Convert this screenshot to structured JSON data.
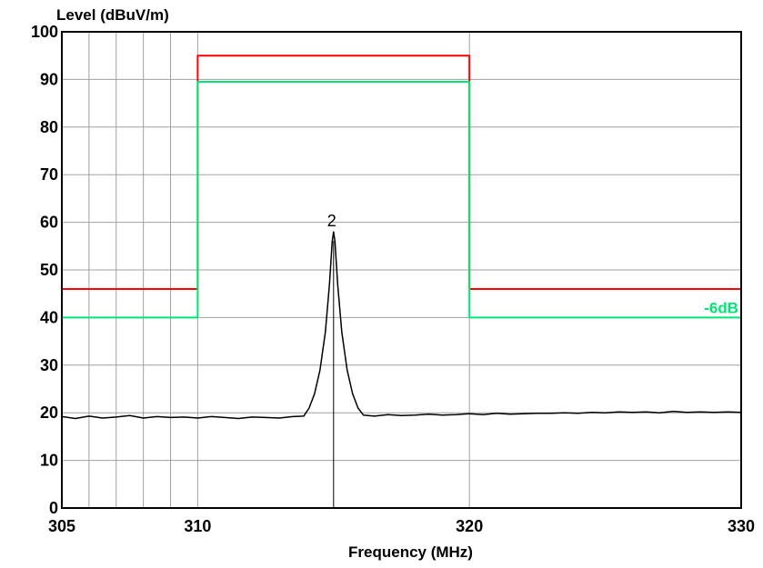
{
  "chart_data": {
    "type": "line",
    "ylabel": "Level (dBuV/m)",
    "xlabel": "Frequency (MHz)",
    "xlim": [
      305,
      330
    ],
    "ylim": [
      0,
      100
    ],
    "x_ticks": [
      305,
      310,
      320,
      330
    ],
    "y_ticks": [
      0,
      10,
      20,
      30,
      40,
      50,
      60,
      70,
      80,
      90,
      100
    ],
    "x_grid_lines": [
      305,
      306,
      307,
      308,
      309,
      310,
      320,
      330
    ],
    "grid": true,
    "series": [
      {
        "color": "#ff0000",
        "points": [
          [
            305,
            46
          ],
          [
            310,
            46
          ],
          [
            310,
            95
          ],
          [
            320,
            95
          ],
          [
            320,
            46
          ],
          [
            330,
            46
          ]
        ]
      },
      {
        "color": "#00e676",
        "points": [
          [
            305,
            40
          ],
          [
            310,
            40
          ],
          [
            310,
            89.5
          ],
          [
            320,
            89.5
          ],
          [
            320,
            40
          ],
          [
            330,
            40
          ]
        ]
      },
      {
        "color": "#000000",
        "points": [
          [
            305,
            19.2
          ],
          [
            305.5,
            18.8
          ],
          [
            306,
            19.3
          ],
          [
            306.5,
            18.9
          ],
          [
            307,
            19.1
          ],
          [
            307.5,
            19.4
          ],
          [
            308,
            18.9
          ],
          [
            308.5,
            19.2
          ],
          [
            309,
            19.0
          ],
          [
            309.5,
            19.1
          ],
          [
            310,
            18.9
          ],
          [
            310.5,
            19.2
          ],
          [
            311,
            19.0
          ],
          [
            311.5,
            18.8
          ],
          [
            312,
            19.1
          ],
          [
            312.5,
            19.0
          ],
          [
            313,
            18.9
          ],
          [
            313.5,
            19.2
          ],
          [
            313.9,
            19.3
          ],
          [
            314.1,
            21
          ],
          [
            314.3,
            24
          ],
          [
            314.5,
            29
          ],
          [
            314.7,
            37
          ],
          [
            314.85,
            47
          ],
          [
            314.95,
            56
          ],
          [
            315.0,
            58
          ],
          [
            315.05,
            56
          ],
          [
            315.15,
            47
          ],
          [
            315.3,
            37
          ],
          [
            315.5,
            29
          ],
          [
            315.7,
            24
          ],
          [
            315.9,
            21
          ],
          [
            316.1,
            19.5
          ],
          [
            316.5,
            19.3
          ],
          [
            317,
            19.6
          ],
          [
            317.5,
            19.4
          ],
          [
            318,
            19.5
          ],
          [
            318.5,
            19.7
          ],
          [
            319,
            19.5
          ],
          [
            319.5,
            19.6
          ],
          [
            320,
            19.8
          ],
          [
            320.5,
            19.6
          ],
          [
            321,
            19.9
          ],
          [
            321.5,
            19.7
          ],
          [
            322,
            19.8
          ],
          [
            322.5,
            19.9
          ],
          [
            323,
            19.9
          ],
          [
            323.5,
            20.0
          ],
          [
            324,
            19.9
          ],
          [
            324.5,
            20.1
          ],
          [
            325,
            20.0
          ],
          [
            325.5,
            20.2
          ],
          [
            326,
            20.1
          ],
          [
            326.5,
            20.2
          ],
          [
            327,
            20.0
          ],
          [
            327.5,
            20.3
          ],
          [
            328,
            20.1
          ],
          [
            328.5,
            20.2
          ],
          [
            329,
            20.1
          ],
          [
            329.5,
            20.2
          ],
          [
            330,
            20.1
          ]
        ]
      }
    ],
    "markers": [
      {
        "label": "2",
        "x": 315,
        "y": 58
      }
    ],
    "annotations": [
      {
        "text": "-6dB",
        "x": 330,
        "y": 40,
        "color": "#00e676"
      }
    ]
  }
}
